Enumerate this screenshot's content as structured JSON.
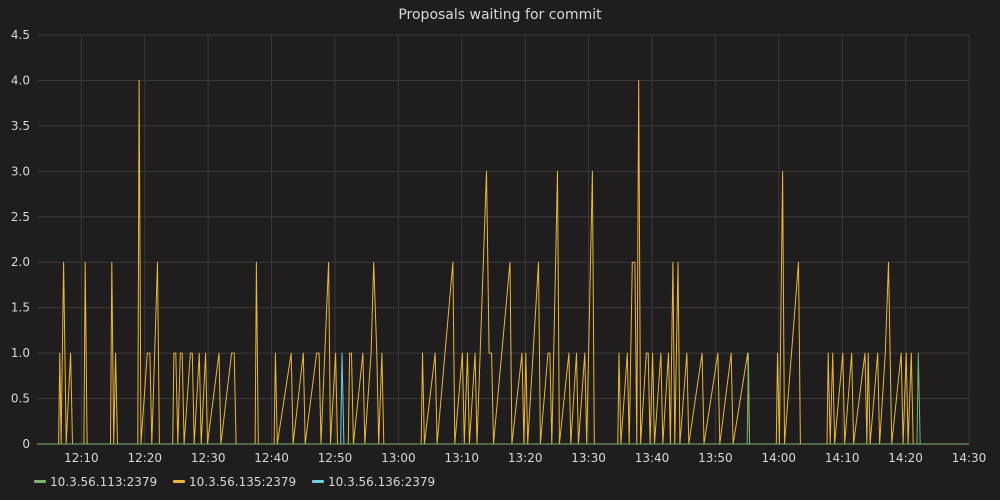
{
  "chart_data": {
    "type": "line",
    "title": "Proposals waiting for commit",
    "xlabel": "",
    "ylabel": "",
    "x_range": [
      "12:03",
      "14:30"
    ],
    "ylim": [
      0,
      4.5
    ],
    "x_ticks": [
      "12:10",
      "12:20",
      "12:30",
      "12:40",
      "12:50",
      "13:00",
      "13:10",
      "13:20",
      "13:30",
      "13:40",
      "13:50",
      "14:00",
      "14:10",
      "14:20",
      "14:30"
    ],
    "y_ticks": [
      "0",
      "0.5",
      "1.0",
      "1.5",
      "2.0",
      "2.5",
      "3.0",
      "3.5",
      "4.0",
      "4.5"
    ],
    "grid": true,
    "legend_position": "bottom-left",
    "series": [
      {
        "name": "10.3.56.113:2379",
        "color": "#7eb26d",
        "points": [
          [
            "12:03",
            0
          ],
          [
            "13:55",
            0
          ],
          [
            "13:55.2",
            1
          ],
          [
            "13:55.4",
            0
          ],
          [
            "14:21.8",
            0
          ],
          [
            "14:22",
            1
          ],
          [
            "14:22.3",
            0
          ],
          [
            "14:30",
            0
          ]
        ]
      },
      {
        "name": "10.3.56.135:2379",
        "color": "#eab839",
        "points": [
          [
            "12:03",
            0
          ],
          [
            "12:06.4",
            0
          ],
          [
            "12:06.6",
            1
          ],
          [
            "12:06.8",
            0
          ],
          [
            "12:07.2",
            2
          ],
          [
            "12:07.6",
            0
          ],
          [
            "12:08.3",
            1
          ],
          [
            "12:08.6",
            0
          ],
          [
            "12:10.4",
            0
          ],
          [
            "12:10.6",
            2
          ],
          [
            "12:10.9",
            0
          ],
          [
            "12:14.6",
            0
          ],
          [
            "12:14.8",
            2
          ],
          [
            "12:15.1",
            0
          ],
          [
            "12:15.4",
            1
          ],
          [
            "12:15.7",
            0
          ],
          [
            "12:18.9",
            0
          ],
          [
            "12:19.1",
            4
          ],
          [
            "12:19.4",
            0
          ],
          [
            "12:20.4",
            1
          ],
          [
            "12:20.8",
            1
          ],
          [
            "12:21.1",
            0
          ],
          [
            "12:22",
            2
          ],
          [
            "12:22.3",
            0
          ],
          [
            "12:24.4",
            0
          ],
          [
            "12:24.6",
            1
          ],
          [
            "12:24.9",
            1
          ],
          [
            "12:25.2",
            0
          ],
          [
            "12:25.6",
            1
          ],
          [
            "12:25.9",
            1
          ],
          [
            "12:26.2",
            0
          ],
          [
            "12:27.2",
            1
          ],
          [
            "12:27.5",
            1
          ],
          [
            "12:27.8",
            0
          ],
          [
            "12:28.6",
            1
          ],
          [
            "12:28.9",
            0
          ],
          [
            "12:29.6",
            1
          ],
          [
            "12:29.9",
            0
          ],
          [
            "12:31.7",
            1
          ],
          [
            "12:32",
            0
          ],
          [
            "12:33.7",
            1
          ],
          [
            "12:34.1",
            1
          ],
          [
            "12:34.4",
            0
          ],
          [
            "12:37.4",
            0
          ],
          [
            "12:37.6",
            2
          ],
          [
            "12:37.9",
            0
          ],
          [
            "12:40.4",
            0
          ],
          [
            "12:40.6",
            1
          ],
          [
            "12:40.9",
            0
          ],
          [
            "12:43.1",
            1
          ],
          [
            "12:43.4",
            0
          ],
          [
            "12:45",
            1
          ],
          [
            "12:45.3",
            0
          ],
          [
            "12:47.1",
            1
          ],
          [
            "12:47.5",
            1
          ],
          [
            "12:47.8",
            0
          ],
          [
            "12:49",
            2
          ],
          [
            "12:49.3",
            0
          ],
          [
            "12:50.1",
            1
          ],
          [
            "12:50.4",
            0
          ],
          [
            "12:52.1",
            0
          ],
          [
            "12:52.3",
            1
          ],
          [
            "12:52.6",
            1
          ],
          [
            "12:52.9",
            0
          ],
          [
            "12:54.4",
            1
          ],
          [
            "12:54.7",
            0
          ],
          [
            "12:55.7",
            1
          ],
          [
            "12:56.1",
            2
          ],
          [
            "12:56.6",
            1
          ],
          [
            "12:56.9",
            0
          ],
          [
            "12:57.4",
            1
          ],
          [
            "12:57.7",
            0
          ],
          [
            "13:03.6",
            0
          ],
          [
            "13:03.8",
            1
          ],
          [
            "13:04.1",
            0
          ],
          [
            "13:05.8",
            1
          ],
          [
            "13:06.1",
            0
          ],
          [
            "13:08.6",
            2
          ],
          [
            "13:08.9",
            0
          ],
          [
            "13:10.1",
            1
          ],
          [
            "13:10.4",
            0
          ],
          [
            "13:10.9",
            1
          ],
          [
            "13:11.2",
            0
          ],
          [
            "13:12.1",
            1
          ],
          [
            "13:12.4",
            0
          ],
          [
            "13:13.9",
            3
          ],
          [
            "13:14.3",
            1
          ],
          [
            "13:14.7",
            1
          ],
          [
            "13:15",
            0
          ],
          [
            "13:17.6",
            2
          ],
          [
            "13:17.9",
            0
          ],
          [
            "13:19.5",
            1
          ],
          [
            "13:19.8",
            0
          ],
          [
            "13:20.1",
            1
          ],
          [
            "13:20.4",
            0
          ],
          [
            "13:22.1",
            2
          ],
          [
            "13:22.4",
            0
          ],
          [
            "13:23.6",
            1
          ],
          [
            "13:23.9",
            1
          ],
          [
            "13:24.2",
            0
          ],
          [
            "13:25.1",
            3
          ],
          [
            "13:25.4",
            0
          ],
          [
            "13:26.9",
            1
          ],
          [
            "13:27.2",
            0
          ],
          [
            "13:28.1",
            1
          ],
          [
            "13:28.4",
            0
          ],
          [
            "13:29.4",
            1
          ],
          [
            "13:29.7",
            0
          ],
          [
            "13:30.6",
            3
          ],
          [
            "13:30.9",
            0
          ],
          [
            "13:34.6",
            0
          ],
          [
            "13:34.8",
            1
          ],
          [
            "13:35.1",
            0
          ],
          [
            "13:36.1",
            1
          ],
          [
            "13:36.4",
            0
          ],
          [
            "13:36.9",
            2
          ],
          [
            "13:37.3",
            2
          ],
          [
            "13:37.6",
            0
          ],
          [
            "13:37.9",
            4
          ],
          [
            "13:38.2",
            0
          ],
          [
            "13:39.1",
            1
          ],
          [
            "13:39.4",
            1
          ],
          [
            "13:39.7",
            0
          ],
          [
            "13:40.1",
            1
          ],
          [
            "13:40.4",
            0
          ],
          [
            "13:41.4",
            1
          ],
          [
            "13:41.7",
            0
          ],
          [
            "13:42.6",
            1
          ],
          [
            "13:42.9",
            0
          ],
          [
            "13:43.3",
            2
          ],
          [
            "13:43.6",
            0
          ],
          [
            "13:44.1",
            2
          ],
          [
            "13:44.4",
            0
          ],
          [
            "13:45.5",
            1
          ],
          [
            "13:45.8",
            0
          ],
          [
            "13:47.9",
            1
          ],
          [
            "13:48.2",
            0
          ],
          [
            "13:50.4",
            1
          ],
          [
            "13:50.7",
            0
          ],
          [
            "13:52.5",
            1
          ],
          [
            "13:52.8",
            0
          ],
          [
            "13:55.1",
            1
          ],
          [
            "13:55.4",
            0
          ],
          [
            "13:59.6",
            0
          ],
          [
            "13:59.8",
            1
          ],
          [
            "14:00.1",
            0
          ],
          [
            "14:00.6",
            3
          ],
          [
            "14:00.9",
            0
          ],
          [
            "14:03.1",
            2
          ],
          [
            "14:03.4",
            0
          ],
          [
            "14:07.6",
            0
          ],
          [
            "14:07.8",
            1
          ],
          [
            "14:08.1",
            0
          ],
          [
            "14:08.5",
            1
          ],
          [
            "14:08.8",
            0
          ],
          [
            "14:10.1",
            1
          ],
          [
            "14:10.4",
            0
          ],
          [
            "14:11.5",
            1
          ],
          [
            "14:11.8",
            0
          ],
          [
            "14:13.6",
            1
          ],
          [
            "14:13.9",
            0
          ],
          [
            "14:14.1",
            1
          ],
          [
            "14:14.4",
            0
          ],
          [
            "14:15.6",
            1
          ],
          [
            "14:15.9",
            0
          ],
          [
            "14:16.8",
            1
          ],
          [
            "14:17.3",
            2
          ],
          [
            "14:17.8",
            0
          ],
          [
            "14:19.3",
            1
          ],
          [
            "14:19.6",
            0
          ],
          [
            "14:20.1",
            1
          ],
          [
            "14:20.4",
            0
          ],
          [
            "14:20.9",
            1
          ],
          [
            "14:21.2",
            0
          ],
          [
            "14:30",
            0
          ]
        ]
      },
      {
        "name": "10.3.56.136:2379",
        "color": "#6ed0e0",
        "points": [
          [
            "12:03",
            0
          ],
          [
            "12:50.9",
            0
          ],
          [
            "12:51.1",
            1
          ],
          [
            "12:51.4",
            0
          ],
          [
            "14:30",
            0
          ]
        ]
      }
    ]
  }
}
